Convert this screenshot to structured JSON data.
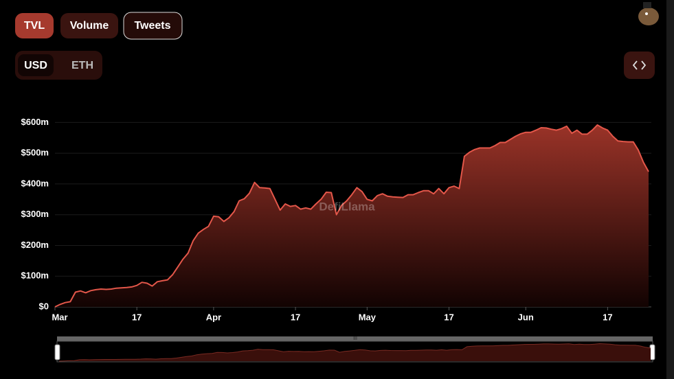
{
  "ui": {
    "tabs": [
      "TVL",
      "Volume",
      "Tweets"
    ],
    "currencies": [
      "USD",
      "ETH"
    ],
    "watermark": "DefiLlama"
  },
  "chart_data": {
    "type": "area",
    "categories": [
      "Mar",
      null,
      null,
      null,
      null,
      null,
      null,
      null,
      null,
      null,
      null,
      null,
      null,
      null,
      null,
      null,
      "17",
      null,
      null,
      null,
      null,
      null,
      null,
      null,
      null,
      null,
      null,
      null,
      null,
      null,
      null,
      "Apr",
      null,
      null,
      null,
      null,
      null,
      null,
      null,
      null,
      null,
      null,
      null,
      null,
      null,
      null,
      null,
      "17",
      null,
      null,
      null,
      null,
      null,
      null,
      null,
      null,
      null,
      null,
      null,
      null,
      null,
      "May",
      null,
      null,
      null,
      null,
      null,
      null,
      null,
      null,
      null,
      null,
      null,
      null,
      null,
      null,
      null,
      "17",
      null,
      null,
      null,
      null,
      null,
      null,
      null,
      null,
      null,
      null,
      null,
      null,
      null,
      null,
      "Jun",
      null,
      null,
      null,
      null,
      null,
      null,
      null,
      null,
      null,
      null,
      null,
      null,
      null,
      null,
      null,
      "17",
      null,
      null,
      null,
      null,
      null,
      null,
      null,
      null
    ],
    "values": [
      0,
      8,
      14,
      17,
      48,
      52,
      46,
      53,
      56,
      58,
      57,
      58,
      61,
      62,
      63,
      65,
      70,
      80,
      77,
      68,
      82,
      85,
      88,
      105,
      130,
      155,
      175,
      215,
      240,
      252,
      262,
      295,
      293,
      278,
      290,
      310,
      345,
      352,
      370,
      405,
      388,
      387,
      385,
      350,
      315,
      335,
      327,
      330,
      318,
      322,
      318,
      335,
      350,
      373,
      372,
      300,
      330,
      345,
      365,
      388,
      375,
      350,
      345,
      362,
      368,
      360,
      358,
      357,
      356,
      365,
      365,
      372,
      378,
      378,
      368,
      385,
      368,
      388,
      393,
      385,
      490,
      503,
      512,
      517,
      517,
      517,
      525,
      535,
      535,
      545,
      555,
      563,
      568,
      568,
      575,
      583,
      582,
      578,
      575,
      580,
      588,
      565,
      575,
      562,
      562,
      575,
      592,
      582,
      575,
      555,
      540,
      538,
      537,
      537,
      510,
      470,
      440
    ],
    "color": "#e4574a",
    "ylim": [
      0,
      650
    ],
    "yticks": [
      {
        "value": 0,
        "label": "$0"
      },
      {
        "value": 100,
        "label": "$100m"
      },
      {
        "value": 200,
        "label": "$200m"
      },
      {
        "value": 300,
        "label": "$300m"
      },
      {
        "value": 400,
        "label": "$400m"
      },
      {
        "value": 500,
        "label": "$500m"
      },
      {
        "value": 600,
        "label": "$600m"
      }
    ],
    "grid": true
  }
}
